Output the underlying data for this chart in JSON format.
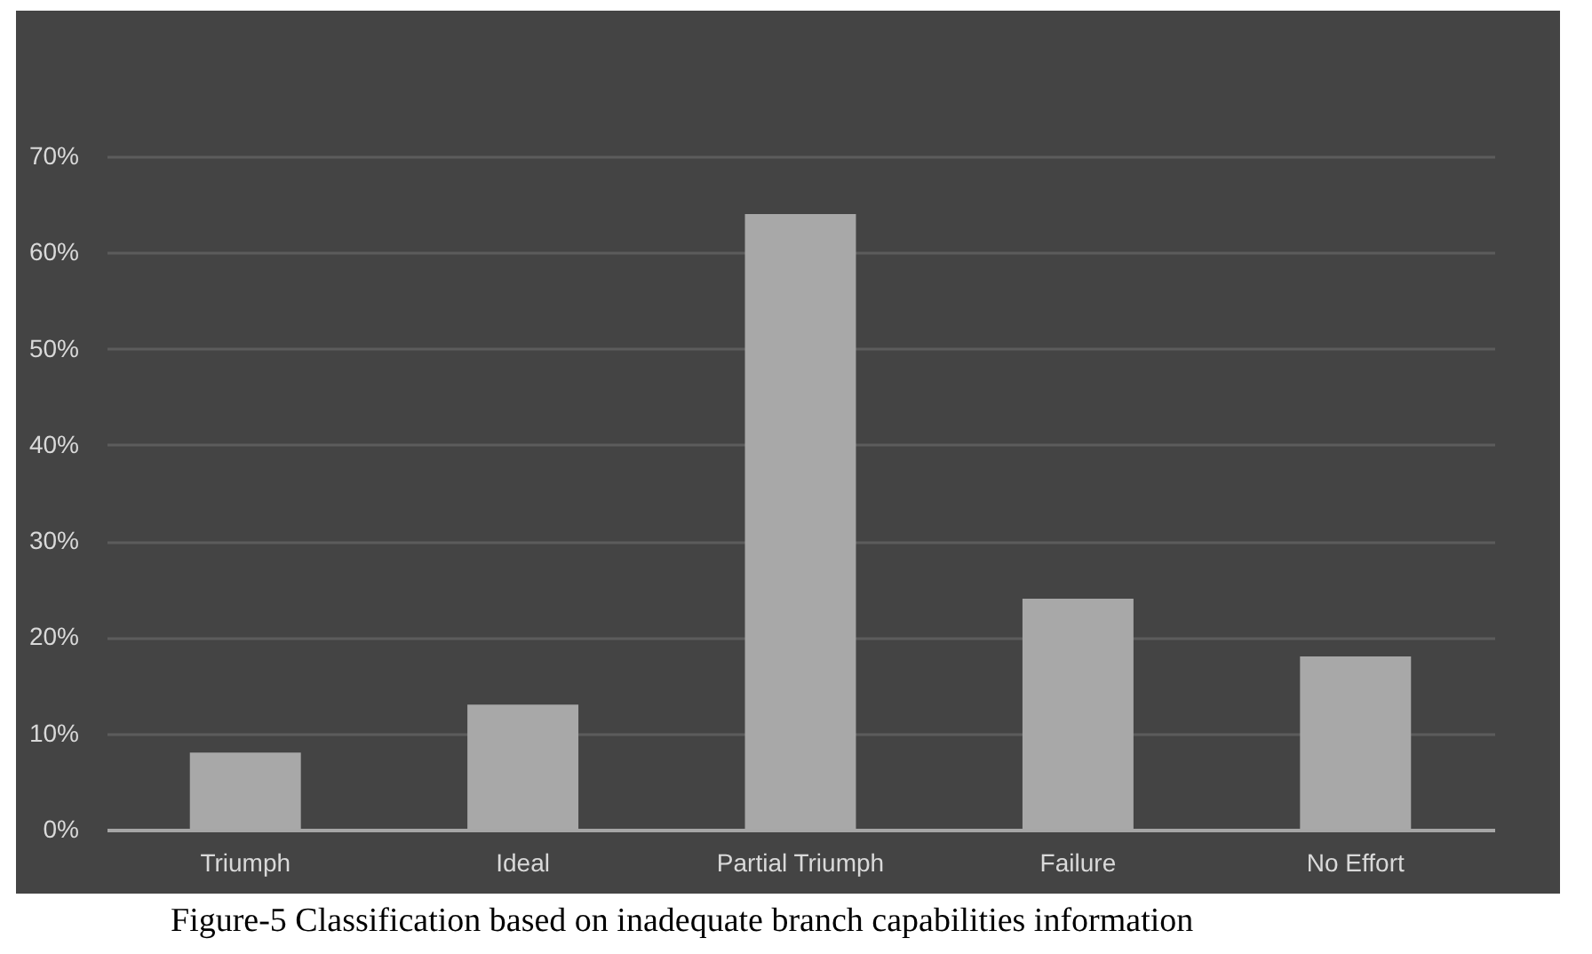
{
  "chart_data": {
    "type": "bar",
    "categories": [
      "Triumph",
      "Ideal",
      "Partial Triumph",
      "Failure",
      "No Effort"
    ],
    "values": [
      8,
      13,
      64,
      24,
      18
    ],
    "color": "#a8a8a8",
    "ylim": [
      0,
      70
    ],
    "yticks": [
      {
        "value": 0,
        "label": "0%"
      },
      {
        "value": 10,
        "label": "10%"
      },
      {
        "value": 20,
        "label": "20%"
      },
      {
        "value": 30,
        "label": "30%"
      },
      {
        "value": 40,
        "label": "40%"
      },
      {
        "value": 50,
        "label": "50%"
      },
      {
        "value": 60,
        "label": "60%"
      },
      {
        "value": 70,
        "label": "70%"
      }
    ],
    "grid": "y",
    "annotations": [
      "Figure-5 Classification based on inadequate branch capabilities information"
    ]
  }
}
